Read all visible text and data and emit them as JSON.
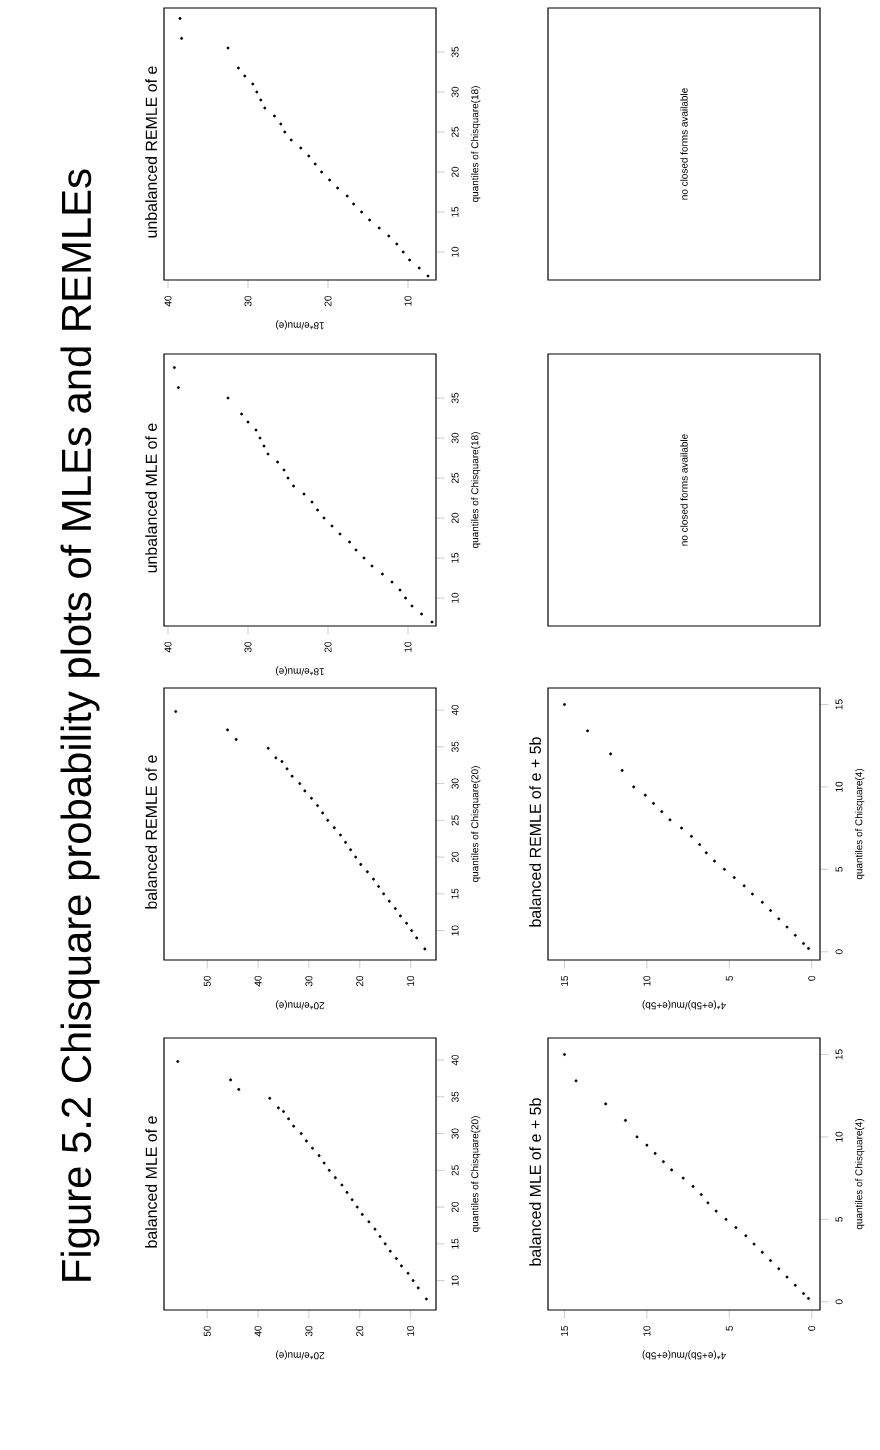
{
  "chart_data": [
    {
      "type": "other",
      "title": "Figure 5.2 Chisquare probability plots of MLEs and REMLEs"
    },
    {
      "type": "scatter",
      "title": "balanced MLE of e",
      "ylabel": "quantiles of Chisquare(20)",
      "xlabel": "20*e/mu(e)",
      "color": "#000000",
      "marker": "circle",
      "ylim": [
        6,
        43
      ],
      "xlim": [
        58.5,
        5
      ],
      "yticks": [
        10,
        15,
        20,
        25,
        30,
        35,
        40
      ],
      "xticks": [
        10,
        20,
        30,
        40,
        50
      ],
      "values": [
        7.5,
        9,
        10,
        11,
        12,
        13,
        14,
        15,
        16,
        17,
        18,
        19,
        20,
        21,
        22,
        23,
        24,
        25,
        26,
        27,
        28,
        29,
        30,
        31,
        32,
        33,
        33.5,
        34.8,
        36,
        37.3,
        39.8
      ],
      "x": [
        6.9,
        8.5,
        9.5,
        10.5,
        11.8,
        12.8,
        14,
        15,
        16,
        17,
        18.2,
        19.5,
        20.5,
        21.5,
        22.5,
        23.5,
        24.8,
        26,
        27,
        28,
        29.3,
        30.5,
        31.5,
        33,
        34,
        35,
        36,
        37.7,
        43.8,
        45.4,
        55.8
      ]
    },
    {
      "type": "scatter",
      "title": "balanced REMLE of e",
      "ylabel": "quantiles of Chisquare(20)",
      "xlabel": "20*e/mu(e)",
      "color": "#000000",
      "marker": "circle",
      "ylim": [
        6,
        43
      ],
      "xlim": [
        58.5,
        5
      ],
      "yticks": [
        10,
        15,
        20,
        25,
        30,
        35,
        40
      ],
      "xticks": [
        10,
        20,
        30,
        40,
        50
      ],
      "values": [
        7.5,
        9,
        10,
        11,
        12,
        13,
        14,
        15,
        16,
        17,
        18,
        19,
        20,
        21,
        22,
        23,
        24,
        25,
        26,
        27,
        28,
        29,
        30,
        31,
        32,
        33,
        33.5,
        34.8,
        36,
        37.3,
        39.8
      ],
      "x": [
        7.2,
        8.8,
        9.8,
        10.8,
        12,
        13,
        14.2,
        15.3,
        16.3,
        17.3,
        18.5,
        19.8,
        20.8,
        21.8,
        22.8,
        23.8,
        25,
        26.3,
        27.3,
        28.3,
        29.5,
        30.8,
        31.8,
        33.3,
        34.3,
        35.3,
        36.5,
        38,
        44.3,
        46,
        56.2
      ]
    },
    {
      "type": "scatter",
      "title": "unbalanced MLE of e",
      "ylabel": "quantiles of Chisquare(18)",
      "xlabel": "18*e/mu(e)",
      "color": "#000000",
      "marker": "circle",
      "ylim": [
        6.5,
        40.5
      ],
      "xlim": [
        40.5,
        6.5
      ],
      "yticks": [
        10,
        15,
        20,
        25,
        30,
        35
      ],
      "xticks": [
        10,
        20,
        30,
        40
      ],
      "values": [
        7,
        8,
        9,
        10,
        11,
        12,
        13,
        14,
        15,
        16,
        17,
        18,
        19,
        20,
        21,
        22,
        23,
        24,
        25,
        26,
        27,
        28,
        29,
        30,
        31,
        32,
        33,
        35,
        36.3,
        38.8
      ],
      "x": [
        7,
        8.3,
        9.5,
        10.3,
        11,
        12,
        13.2,
        14.5,
        15.5,
        16.5,
        17.3,
        18.5,
        19.5,
        20.5,
        21.3,
        22,
        23,
        24.3,
        25,
        25.5,
        26.3,
        27.5,
        28,
        28.5,
        29,
        30,
        30.8,
        32.5,
        38.7,
        39.2
      ]
    },
    {
      "type": "scatter",
      "title": "unbalanced REMLE of e",
      "ylabel": "quantiles of Chisquare(18)",
      "xlabel": "18*e/mu(e)",
      "color": "#000000",
      "marker": "circle",
      "ylim": [
        6.5,
        40.5
      ],
      "xlim": [
        40.5,
        6.5
      ],
      "yticks": [
        10,
        15,
        20,
        25,
        30,
        35
      ],
      "xticks": [
        10,
        20,
        30,
        40
      ],
      "values": [
        7,
        8,
        9,
        10,
        11,
        12,
        13,
        14,
        15,
        16,
        17,
        18,
        19,
        20,
        21,
        22,
        23,
        24,
        25,
        26,
        27,
        28,
        29,
        30,
        31,
        32,
        33,
        35.5,
        36.7,
        39.2
      ],
      "x": [
        7.5,
        8.6,
        9.8,
        10.6,
        11.4,
        12.4,
        13.6,
        14.8,
        15.8,
        16.8,
        17.6,
        18.8,
        19.8,
        20.8,
        21.6,
        22.4,
        23.4,
        24.6,
        25.4,
        25.9,
        26.7,
        27.9,
        28.4,
        28.9,
        29.4,
        30.4,
        31.2,
        32.5,
        38.3,
        38.5
      ]
    },
    {
      "type": "scatter",
      "title": "balanced MLE of e + 5b",
      "ylabel": "quantiles of Chisquare(4)",
      "xlabel": "4*(e+5b)/mu(e+5b)",
      "color": "#000000",
      "marker": "circle",
      "ylim": [
        -0.5,
        16
      ],
      "xlim": [
        16,
        -0.5
      ],
      "yticks": [
        0,
        5,
        10,
        15
      ],
      "xticks": [
        0,
        5,
        10,
        15
      ],
      "values": [
        0.2,
        0.5,
        1,
        1.5,
        2,
        2.5,
        3,
        3.5,
        4,
        4.5,
        5,
        5.5,
        6,
        6.5,
        7,
        7.5,
        8,
        8.5,
        9,
        9.5,
        10,
        11,
        12,
        13.4,
        15
      ],
      "x": [
        0.2,
        0.5,
        1,
        1.5,
        2,
        2.5,
        3,
        3.5,
        4,
        4.6,
        5.2,
        5.8,
        6.3,
        6.7,
        7.2,
        7.8,
        8.5,
        9,
        9.5,
        10,
        10.6,
        11.3,
        12.5,
        14.3,
        15
      ]
    },
    {
      "type": "scatter",
      "title": "balanced REMLE of e + 5b",
      "ylabel": "quantiles of Chisquare(4)",
      "xlabel": "4*(e+5b)/mu(e+5b)",
      "color": "#000000",
      "marker": "circle",
      "ylim": [
        -0.5,
        16
      ],
      "xlim": [
        16,
        -0.5
      ],
      "yticks": [
        0,
        5,
        10,
        15
      ],
      "xticks": [
        0,
        5,
        10,
        15
      ],
      "values": [
        0.2,
        0.5,
        1,
        1.5,
        2,
        2.5,
        3,
        3.5,
        4,
        4.5,
        5,
        5.5,
        6,
        6.5,
        7,
        7.5,
        8,
        8.5,
        9,
        9.5,
        10,
        11,
        12,
        13.4,
        15
      ],
      "x": [
        0.2,
        0.5,
        1,
        1.5,
        2,
        2.5,
        3,
        3.6,
        4.1,
        4.7,
        5.3,
        5.9,
        6.4,
        6.8,
        7.3,
        7.9,
        8.6,
        9.1,
        9.6,
        10.1,
        10.8,
        11.5,
        12.2,
        13.6,
        15
      ]
    },
    {
      "type": "other",
      "annotations": [
        "no closed forms available"
      ]
    },
    {
      "type": "other",
      "annotations": [
        "no closed forms available"
      ]
    }
  ]
}
